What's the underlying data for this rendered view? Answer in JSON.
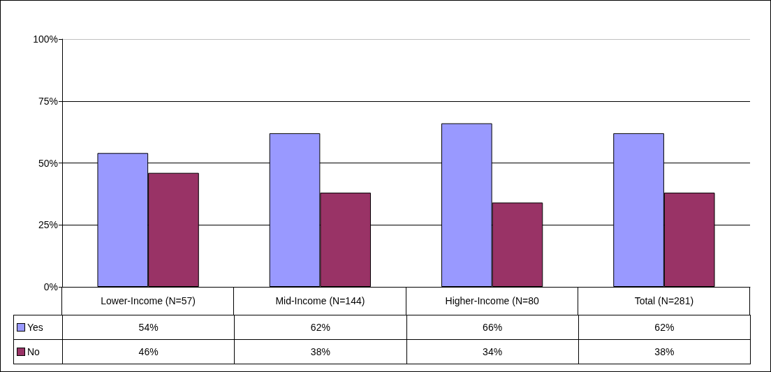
{
  "chart_data": {
    "type": "bar",
    "categories": [
      "Lower-Income (N=57)",
      "Mid-Income (N=144)",
      "Higher-Income (N=80",
      "Total (N=281)"
    ],
    "series": [
      {
        "name": "Yes",
        "color": "#9999ff",
        "values": [
          54,
          62,
          66,
          62
        ],
        "value_labels": [
          "54%",
          "62%",
          "66%",
          "62%"
        ]
      },
      {
        "name": "No",
        "color": "#993366",
        "values": [
          46,
          38,
          34,
          38
        ],
        "value_labels": [
          "46%",
          "38%",
          "34%",
          "38%"
        ]
      }
    ],
    "ylim": [
      0,
      100
    ],
    "yticks": [
      {
        "value": 0,
        "label": "0%"
      },
      {
        "value": 25,
        "label": "25%"
      },
      {
        "value": 50,
        "label": "50%"
      },
      {
        "value": 75,
        "label": "75%"
      },
      {
        "value": 100,
        "label": "100%"
      }
    ],
    "grid": "y",
    "legend": "bottom"
  }
}
